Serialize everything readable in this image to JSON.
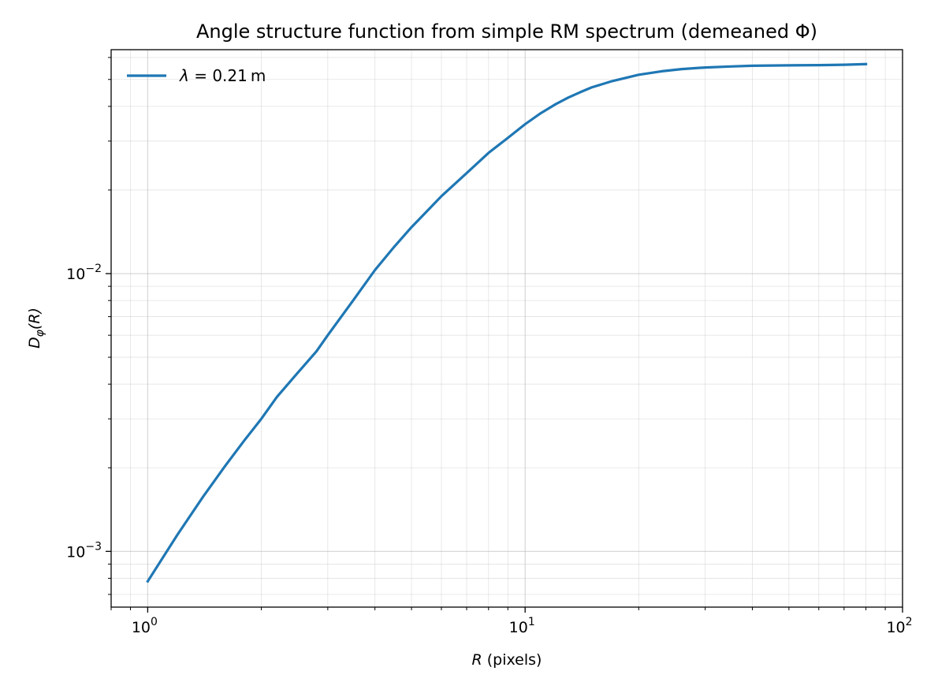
{
  "chart_data": {
    "type": "line",
    "title": "Angle structure function from simple RM spectrum (demeaned Φ)",
    "xlabel": {
      "var": "R",
      "unit": "(pixels)"
    },
    "ylabel": {
      "main": "D",
      "sub": "φ",
      "arg": "(R)"
    },
    "xscale": "log",
    "yscale": "log",
    "xlim": [
      0.8,
      100
    ],
    "ylim": [
      0.00063,
      0.064
    ],
    "x_ticks": [
      {
        "value": 1,
        "base": "10",
        "exp": "0"
      },
      {
        "value": 10,
        "base": "10",
        "exp": "1"
      },
      {
        "value": 100,
        "base": "10",
        "exp": "2"
      }
    ],
    "y_ticks": [
      {
        "value": 0.001,
        "base": "10",
        "exp": "−3"
      },
      {
        "value": 0.01,
        "base": "10",
        "exp": "−2"
      }
    ],
    "grid": true,
    "legend_position": "top-left",
    "color": "#1f77b4",
    "series": [
      {
        "name": "λ = 0.21 m",
        "label": {
          "sym": "λ",
          "rest": " = 0.21 m"
        },
        "x": [
          1,
          1.2,
          1.4,
          1.6,
          1.8,
          2,
          2.2,
          2.5,
          2.8,
          3,
          3.5,
          4,
          4.5,
          5,
          5.5,
          6,
          7,
          8,
          9,
          10,
          11,
          12,
          13,
          14,
          15,
          17,
          20,
          23,
          26,
          30,
          35,
          40,
          50,
          60,
          70,
          80
        ],
        "y": [
          0.00078,
          0.00115,
          0.00157,
          0.00202,
          0.0025,
          0.003,
          0.0036,
          0.0044,
          0.00525,
          0.006,
          0.008,
          0.0103,
          0.0125,
          0.0147,
          0.0168,
          0.019,
          0.023,
          0.0272,
          0.0308,
          0.0345,
          0.0378,
          0.0406,
          0.043,
          0.045,
          0.0468,
          0.0493,
          0.052,
          0.0535,
          0.0545,
          0.0552,
          0.0557,
          0.056,
          0.0562,
          0.0563,
          0.0565,
          0.0568
        ]
      }
    ]
  }
}
